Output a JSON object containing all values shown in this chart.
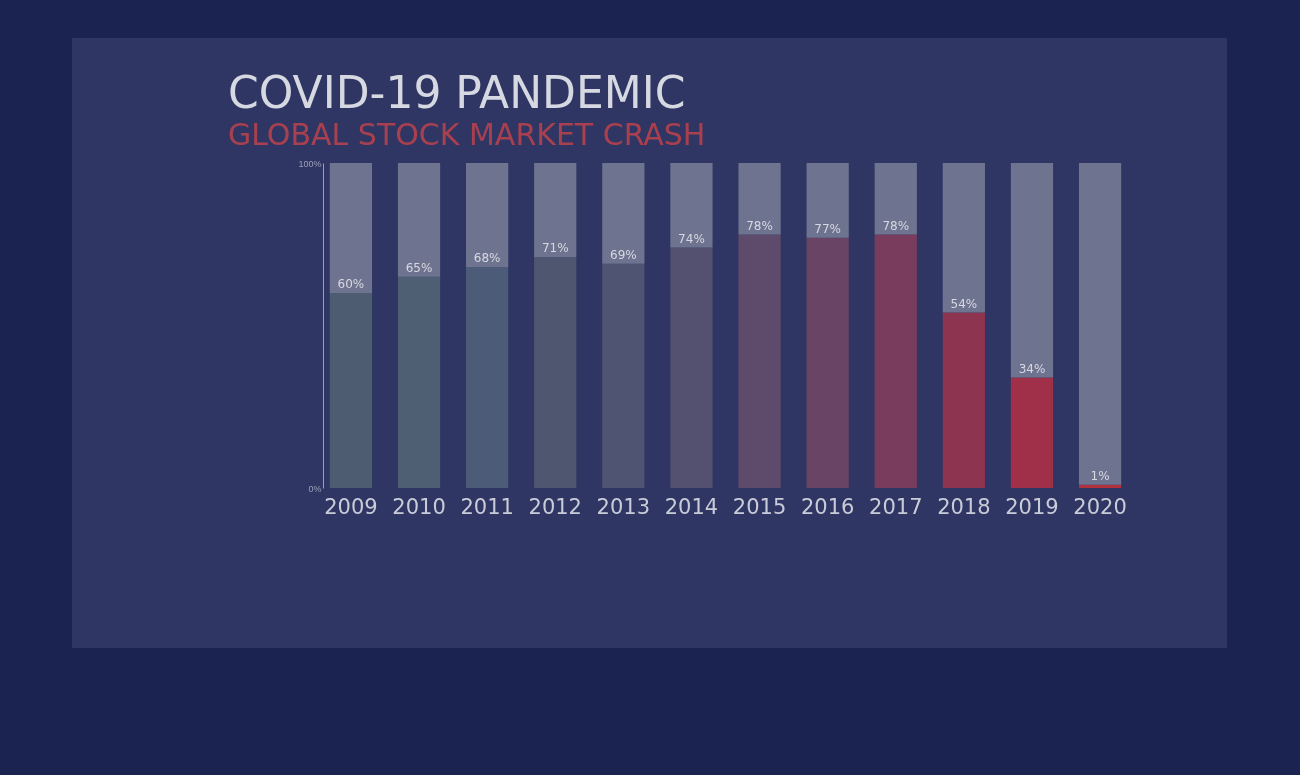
{
  "chart_data": {
    "type": "bar",
    "title": "COVID-19 PANDEMIC",
    "subtitle": "GLOBAL STOCK MARKET CRASH",
    "categories": [
      "2009",
      "2010",
      "2011",
      "2012",
      "2013",
      "2014",
      "2015",
      "2016",
      "2017",
      "2018",
      "2019",
      "2020"
    ],
    "stacked": true,
    "series": [
      {
        "colors": [
          "#4d5c70",
          "#4e5f74",
          "#4c5c78",
          "#4f5670",
          "#4f5472",
          "#535070",
          "#5e4a6a",
          "#6a4464",
          "#7a3c5c",
          "#8c3450",
          "#a0304a",
          "#b0303e"
        ],
        "values": [
          60,
          65,
          68,
          71,
          69,
          74,
          78,
          77,
          78,
          54,
          34,
          1
        ],
        "value_labels": [
          "60%",
          "65%",
          "68%",
          "71%",
          "69%",
          "74%",
          "78%",
          "77%",
          "78%",
          "54%",
          "34%",
          "1%"
        ]
      },
      {
        "color": "#6e7490",
        "values": [
          40,
          35,
          32,
          29,
          31,
          26,
          22,
          23,
          22,
          46,
          66,
          99
        ]
      }
    ],
    "ylim": [
      0,
      100
    ],
    "yticks": [
      {
        "value": 0,
        "label": "0%"
      },
      {
        "value": 100,
        "label": "100%"
      }
    ],
    "grid": false
  }
}
